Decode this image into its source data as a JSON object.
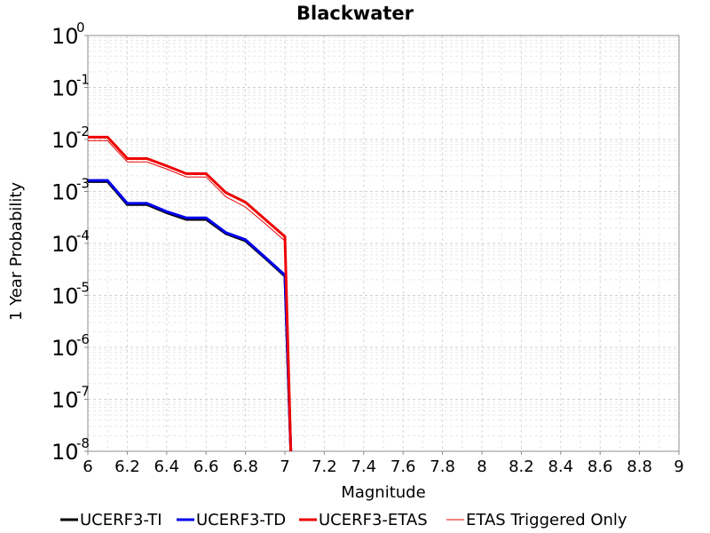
{
  "chart_data": {
    "type": "line",
    "title": "Blackwater",
    "xlabel": "Magnitude",
    "ylabel": "1 Year Probability",
    "xlim": [
      6,
      9
    ],
    "ylim": [
      1e-08,
      1
    ],
    "yscale": "log",
    "grid": true,
    "legend_position": "bottom",
    "x_ticks": [
      "6",
      "6.2",
      "6.4",
      "6.6",
      "6.8",
      "7",
      "7.2",
      "7.4",
      "7.6",
      "7.8",
      "8",
      "8.2",
      "8.4",
      "8.6",
      "8.8",
      "9"
    ],
    "y_ticks": [
      {
        "base": "10",
        "exp": "0"
      },
      {
        "base": "10",
        "exp": "-1"
      },
      {
        "base": "10",
        "exp": "-2"
      },
      {
        "base": "10",
        "exp": "-3"
      },
      {
        "base": "10",
        "exp": "-4"
      },
      {
        "base": "10",
        "exp": "-5"
      },
      {
        "base": "10",
        "exp": "-6"
      },
      {
        "base": "10",
        "exp": "-7"
      },
      {
        "base": "10",
        "exp": "-8"
      }
    ],
    "series": [
      {
        "name": "UCERF3-TI",
        "color": "#000000",
        "width": 3,
        "x": [
          6.0,
          6.1,
          6.2,
          6.3,
          6.4,
          6.5,
          6.6,
          6.7,
          6.8,
          6.9,
          7.0,
          7.03
        ],
        "y": [
          0.00155,
          0.00155,
          0.00056,
          0.00056,
          0.00039,
          0.00029,
          0.00029,
          0.000155,
          0.000112,
          5.2e-05,
          2.35e-05,
          1e-08
        ]
      },
      {
        "name": "UCERF3-TD",
        "color": "#0000ee",
        "width": 3,
        "x": [
          6.0,
          6.1,
          6.2,
          6.3,
          6.4,
          6.5,
          6.6,
          6.7,
          6.8,
          6.9,
          7.0,
          7.03
        ],
        "y": [
          0.00163,
          0.00163,
          0.00059,
          0.00059,
          0.00041,
          0.00031,
          0.00031,
          0.000162,
          0.000118,
          5.4e-05,
          2.45e-05,
          1e-08
        ]
      },
      {
        "name": "UCERF3-ETAS",
        "color": "#ee0000",
        "width": 3,
        "x": [
          6.0,
          6.1,
          6.2,
          6.3,
          6.4,
          6.5,
          6.6,
          6.7,
          6.8,
          6.9,
          7.0,
          7.03
        ],
        "y": [
          0.0111,
          0.0111,
          0.0043,
          0.0043,
          0.0031,
          0.0022,
          0.0022,
          0.00095,
          0.00062,
          0.00029,
          0.000135,
          1e-08
        ]
      },
      {
        "name": "ETAS Triggered Only",
        "color": "#ee0000",
        "width": 1,
        "x": [
          6.0,
          6.1,
          6.2,
          6.3,
          6.4,
          6.5,
          6.6,
          6.7,
          6.8,
          6.9,
          7.0,
          7.03
        ],
        "y": [
          0.0095,
          0.0095,
          0.0037,
          0.0037,
          0.0027,
          0.0019,
          0.0019,
          0.00079,
          0.0005,
          0.00024,
          0.000112,
          1e-08
        ]
      }
    ]
  }
}
